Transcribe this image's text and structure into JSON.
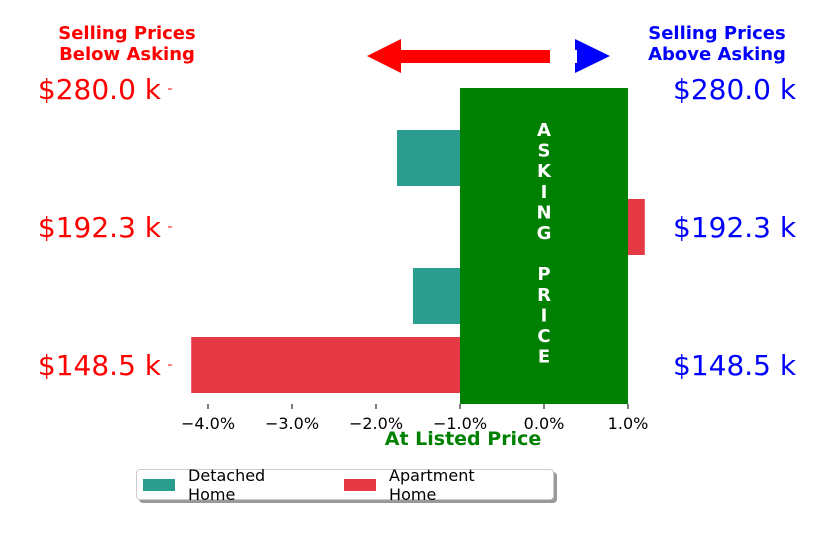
{
  "header": {
    "left_line1": "Selling Prices",
    "left_line2": "Below Asking",
    "right_line1": "Selling Prices",
    "right_line2": "Above Asking"
  },
  "band": {
    "letters": [
      "A",
      "S",
      "K",
      "I",
      "N",
      "G",
      "",
      "P",
      "R",
      "I",
      "C",
      "E"
    ],
    "xlabel": "At Listed Price",
    "color": "#008000",
    "range": [
      -1.0,
      1.0
    ]
  },
  "colors": {
    "left_text": "#ff0000",
    "right_text": "#0000ff",
    "arrow_left": "#ff0000",
    "arrow_right": "#0000ff",
    "detached": "#2a9d8f",
    "apartment": "#e63946"
  },
  "chart_data": {
    "type": "bar",
    "orientation": "horizontal",
    "xlim": [
      -4.3,
      1.0
    ],
    "ticks": [
      {
        "v": -4.0,
        "label": "−4.0%"
      },
      {
        "v": -3.0,
        "label": "−3.0%"
      },
      {
        "v": -2.0,
        "label": "−2.0%"
      },
      {
        "v": -1.0,
        "label": "−1.0%"
      },
      {
        "v": 0.0,
        "label": "0.0%"
      },
      {
        "v": 1.0,
        "label": "1.0%"
      }
    ],
    "price_levels": [
      "$280.0 k",
      "$192.3 k",
      "$148.5 k"
    ],
    "bars": [
      {
        "series": "Detached Home",
        "start": -1.0,
        "value": -0.75,
        "level": 0.5
      },
      {
        "series": "Apartment Home",
        "start": 1.0,
        "value": 0.2,
        "level": 1.0
      },
      {
        "series": "Detached Home",
        "start": -1.0,
        "value": -0.56,
        "level": 1.5
      },
      {
        "series": "Apartment Home",
        "start": -1.0,
        "value": -3.2,
        "level": 2.0
      }
    ],
    "legend": [
      {
        "name": "Detached Home",
        "color": "#2a9d8f"
      },
      {
        "name": "Apartment Home",
        "color": "#e63946"
      }
    ]
  }
}
